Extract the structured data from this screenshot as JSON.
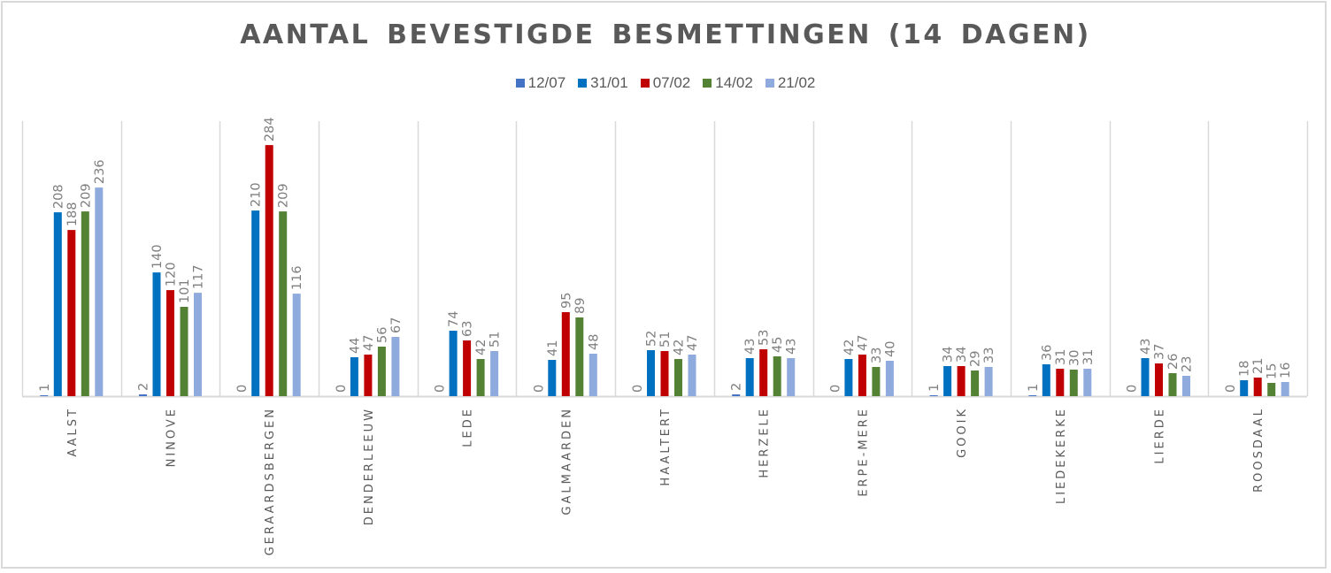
{
  "chart_data": {
    "type": "bar",
    "title": "AANTAL BEVESTIGDE BESMETTINGEN (14 DAGEN)",
    "xlabel": "",
    "ylabel": "",
    "ylim": [
      0,
      300
    ],
    "grid": "vertical category separators",
    "legend_position": "top-center",
    "categories": [
      "AALST",
      "NINOVE",
      "GERAARDSBERGEN",
      "DENDERLEEUW",
      "LEDE",
      "GALMAARDEN",
      "HAALTERT",
      "HERZELE",
      "ERPE-MERE",
      "GOOIK",
      "LIEDEKERKE",
      "LIERDE",
      "ROOSDAAL"
    ],
    "series": [
      {
        "name": "12/07",
        "color": "#4472c4",
        "values": [
          1,
          2,
          0,
          0,
          0,
          0,
          0,
          2,
          0,
          1,
          1,
          0,
          0
        ]
      },
      {
        "name": "31/01",
        "color": "#0070c0",
        "values": [
          208,
          140,
          210,
          44,
          74,
          41,
          52,
          43,
          42,
          34,
          36,
          43,
          18
        ]
      },
      {
        "name": "07/02",
        "color": "#c00000",
        "values": [
          188,
          120,
          284,
          47,
          63,
          95,
          51,
          53,
          47,
          34,
          31,
          37,
          21
        ]
      },
      {
        "name": "14/02",
        "color": "#548235",
        "values": [
          209,
          101,
          209,
          56,
          42,
          89,
          42,
          45,
          33,
          29,
          30,
          26,
          15
        ]
      },
      {
        "name": "21/02",
        "color": "#8faadc",
        "values": [
          236,
          117,
          116,
          67,
          51,
          48,
          47,
          43,
          40,
          33,
          31,
          23,
          16
        ]
      }
    ]
  }
}
